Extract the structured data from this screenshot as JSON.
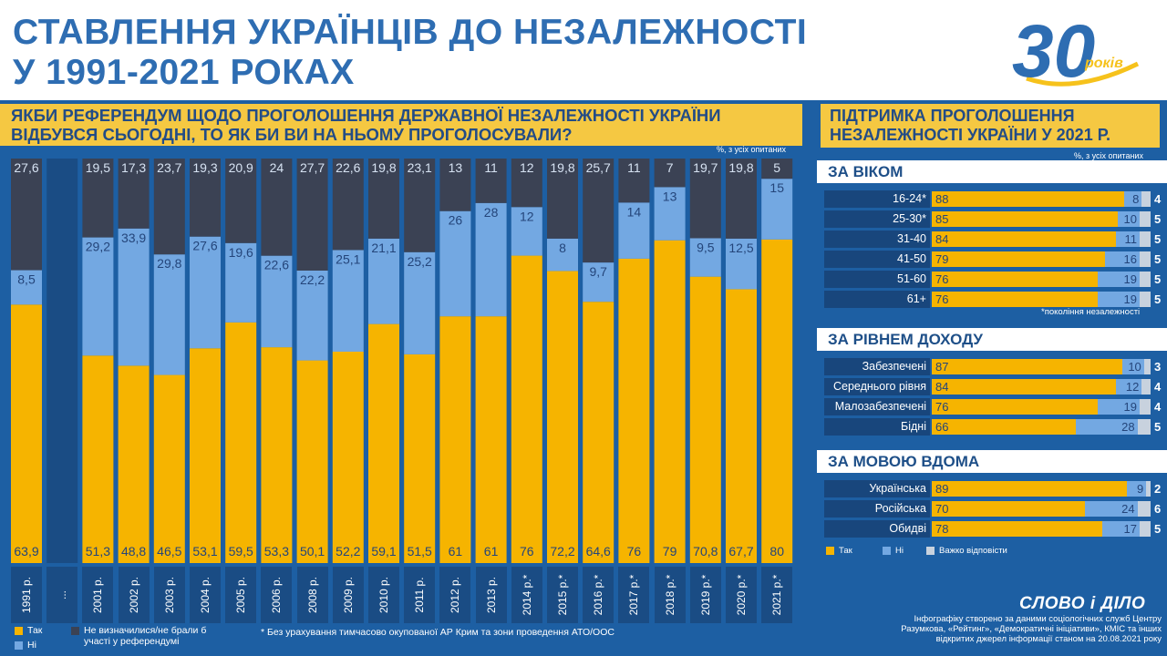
{
  "title": {
    "line1": "СТАВЛЕННЯ УКРАЇНЦІВ ДО НЕЗАЛЕЖНОСТІ",
    "line2": "У 1991-2021 РОКАХ"
  },
  "logo": {
    "number": "30",
    "word": "років"
  },
  "left_panel": {
    "question_line1": "ЯКБИ РЕФЕРЕНДУМ ЩОДО ПРОГОЛОШЕННЯ ДЕРЖАВНОЇ НЕЗАЛЕЖНОСТІ УКРАЇНИ",
    "question_line2": "ВІДБУВСЯ СЬОГОДНІ, ТО ЯК БИ ВИ НА НЬОМУ ПРОГОЛОСУВАЛИ?",
    "unit": "%, з усіх опитаних",
    "gap_label": "...",
    "legend": {
      "yes": "Так",
      "no": "Ні",
      "undecided": "Не визначилися/не брали б участі у референдумі"
    },
    "footnote": "* Без урахування тимчасово окупованої АР Крим та зони проведення АТО/ООС"
  },
  "chart_data": {
    "type": "bar",
    "stacked": true,
    "title": "ЯКБИ РЕФЕРЕНДУМ ЩОДО ПРОГОЛОШЕННЯ ДЕРЖАВНОЇ НЕЗАЛЕЖНОСТІ УКРАЇНИ ВІДБУВСЯ СЬОГОДНІ, ТО ЯК БИ ВИ НА НЬОМУ ПРОГОЛОСУВАЛИ?",
    "ylabel": "%, з усіх опитаних",
    "ylim": [
      0,
      100
    ],
    "categories": [
      "1991 р.",
      "2001 р.",
      "2002 р.",
      "2003 р.",
      "2004 р.",
      "2005 р.",
      "2006 р.",
      "2008 р.",
      "2009 р.",
      "2010 р.",
      "2011 р.",
      "2012 р.",
      "2013 р.",
      "2014 р.*",
      "2015 р.*",
      "2016 р.*",
      "2017 р.*",
      "2018 р.*",
      "2019 р.*",
      "2020 р.*",
      "2021 р.*"
    ],
    "series": [
      {
        "name": "Так",
        "color": "#f6b400",
        "values": [
          63.9,
          51.3,
          48.8,
          46.5,
          53.1,
          59.5,
          53.3,
          50.1,
          52.2,
          59.1,
          51.5,
          61,
          61,
          76,
          72.2,
          64.6,
          76,
          79,
          70.8,
          67.7,
          80
        ]
      },
      {
        "name": "Ні",
        "color": "#73a8e2",
        "values": [
          8.5,
          29.2,
          33.9,
          29.8,
          27.6,
          19.6,
          22.6,
          22.2,
          25.1,
          21.1,
          25.2,
          26,
          28,
          12,
          8,
          9.7,
          14,
          13,
          9.5,
          12.5,
          15
        ]
      },
      {
        "name": "Не визначилися/не брали б участі у референдумі",
        "color": "#3b4254",
        "values": [
          27.6,
          19.5,
          17.3,
          23.7,
          19.3,
          20.9,
          24,
          27.7,
          22.6,
          19.8,
          23.1,
          13,
          11,
          12,
          19.8,
          25.7,
          11,
          7,
          19.7,
          19.8,
          5
        ]
      }
    ]
  },
  "right_panel": {
    "title_line1": "ПІДТРИМКА ПРОГОЛОШЕННЯ",
    "title_line2": "НЕЗАЛЕЖНОСТІ УКРАЇНИ У 2021 Р.",
    "unit": "%, з усіх опитаних",
    "footnote": "*покоління незалежності",
    "legend": {
      "yes": "Так",
      "no": "Ні",
      "hard": "Важко відповісти"
    },
    "colors": {
      "yes": "#f6b400",
      "no": "#73a8e2",
      "hard": "#c8d2de"
    },
    "sections": [
      {
        "title": "ЗА ВІКОМ",
        "rows": [
          {
            "label": "16-24*",
            "yes": 88,
            "no": 8,
            "hard": 4
          },
          {
            "label": "25-30*",
            "yes": 85,
            "no": 10,
            "hard": 5
          },
          {
            "label": "31-40",
            "yes": 84,
            "no": 11,
            "hard": 5
          },
          {
            "label": "41-50",
            "yes": 79,
            "no": 16,
            "hard": 5
          },
          {
            "label": "51-60",
            "yes": 76,
            "no": 19,
            "hard": 5
          },
          {
            "label": "61+",
            "yes": 76,
            "no": 19,
            "hard": 5
          }
        ]
      },
      {
        "title": "ЗА РІВНЕМ ДОХОДУ",
        "rows": [
          {
            "label": "Забезпечені",
            "yes": 87,
            "no": 10,
            "hard": 3
          },
          {
            "label": "Середнього рівня",
            "yes": 84,
            "no": 12,
            "hard": 4
          },
          {
            "label": "Малозабезпечені",
            "yes": 76,
            "no": 19,
            "hard": 4
          },
          {
            "label": "Бідні",
            "yes": 66,
            "no": 28,
            "hard": 5
          }
        ]
      },
      {
        "title": "ЗА МОВОЮ ВДОМА",
        "rows": [
          {
            "label": "Українська",
            "yes": 89,
            "no": 9,
            "hard": 2
          },
          {
            "label": "Російська",
            "yes": 70,
            "no": 24,
            "hard": 6
          },
          {
            "label": "Обидві",
            "yes": 78,
            "no": 17,
            "hard": 5
          }
        ]
      }
    ]
  },
  "footer": {
    "brand": "СЛОВО і ДІЛО",
    "credit": "Інфографіку створено за даними соціологічних служб Центру Разумкова, «Рейтинг», «Демократичні ініціативи», КМІС та інших відкритих джерел інформації станом на 20.08.2021 року"
  }
}
